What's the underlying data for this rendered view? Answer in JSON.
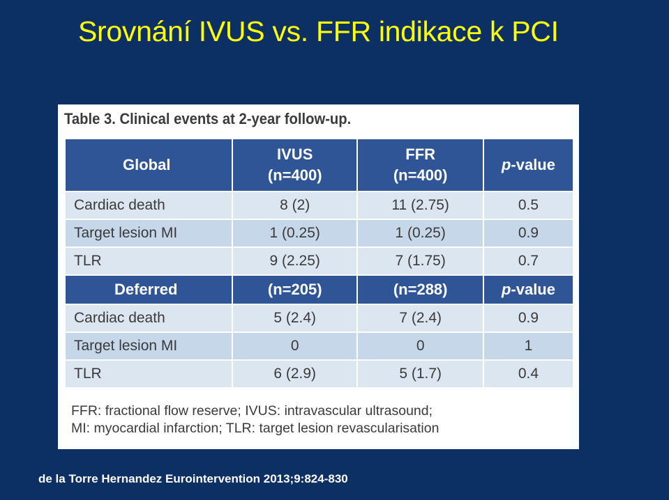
{
  "slide": {
    "title": "Srovnání IVUS vs. FFR indikace k PCI",
    "citation": "de la Torre Hernandez Eurointervention 2013;9:824-830",
    "colors": {
      "background": "#0c3063",
      "title": "#ffff00",
      "header_fill": "#2f5597",
      "row_light": "#dce6f1",
      "row_shade": "#c7d7ea"
    }
  },
  "table": {
    "caption": "Table 3. Clinical events at 2-year follow-up.",
    "global_header": {
      "label": "Global",
      "ivus": "IVUS",
      "ivus_n": "(n=400)",
      "ffr": "FFR",
      "ffr_n": "(n=400)",
      "p_italic": "p",
      "p_suffix": "-value"
    },
    "global_rows": [
      {
        "label": "Cardiac death",
        "ivus": "8 (2)",
        "ffr": "11 (2.75)",
        "p": "0.5"
      },
      {
        "label": "Target lesion MI",
        "ivus": "1 (0.25)",
        "ffr": "1 (0.25)",
        "p": "0.9"
      },
      {
        "label": "TLR",
        "ivus": "9 (2.25)",
        "ffr": "7 (1.75)",
        "p": "0.7"
      }
    ],
    "deferred_header": {
      "label": "Deferred",
      "ivus_n": "(n=205)",
      "ffr_n": "(n=288)",
      "p_italic": "p",
      "p_suffix": "-value"
    },
    "deferred_rows": [
      {
        "label": "Cardiac death",
        "ivus": "5 (2.4)",
        "ffr": "7 (2.4)",
        "p": "0.9"
      },
      {
        "label": "Target lesion MI",
        "ivus": "0",
        "ffr": "0",
        "p": "1"
      },
      {
        "label": "TLR",
        "ivus": "6 (2.9)",
        "ffr": "5 (1.7)",
        "p": "0.4"
      }
    ],
    "footnote_line1": "FFR: fractional flow reserve; IVUS: intravascular ultrasound;",
    "footnote_line2": "MI: myocardial infarction; TLR: target lesion revascularisation"
  }
}
